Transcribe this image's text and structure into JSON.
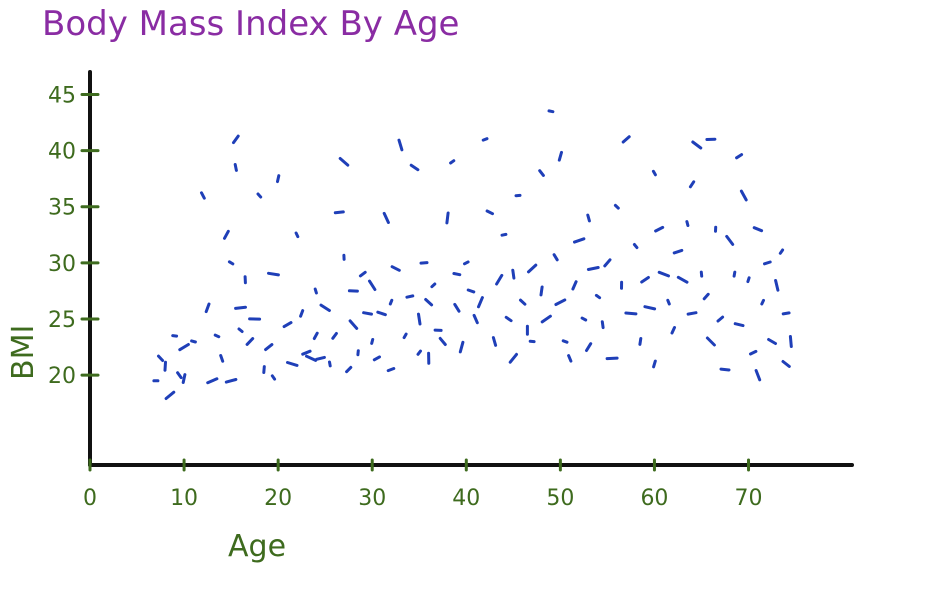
{
  "chart_data": {
    "type": "scatter",
    "title": "Body Mass Index By Age",
    "xlabel": "Age",
    "ylabel": "BMI",
    "xticks": [
      0,
      10,
      20,
      30,
      40,
      50,
      60,
      70
    ],
    "yticks": [
      20,
      25,
      30,
      35,
      40,
      45
    ],
    "xlim": [
      0,
      81
    ],
    "ylim": [
      12,
      47
    ],
    "grid": false,
    "legend": "none",
    "point_color": "#1f3fb8",
    "points": [
      [
        7,
        19.5
      ],
      [
        7.5,
        21.5
      ],
      [
        8,
        20.8
      ],
      [
        8.5,
        18.2
      ],
      [
        9,
        23.5
      ],
      [
        9.5,
        20
      ],
      [
        10,
        19.7
      ],
      [
        10,
        22.5
      ],
      [
        11,
        23
      ],
      [
        12,
        36
      ],
      [
        12.5,
        26
      ],
      [
        13,
        19.5
      ],
      [
        13.5,
        23.5
      ],
      [
        14,
        21.5
      ],
      [
        14.5,
        32.5
      ],
      [
        15,
        19.5
      ],
      [
        15,
        30
      ],
      [
        15.5,
        38.5
      ],
      [
        15.5,
        41
      ],
      [
        16,
        26
      ],
      [
        16,
        24
      ],
      [
        16.5,
        28.5
      ],
      [
        17,
        23
      ],
      [
        17.5,
        25
      ],
      [
        18,
        36
      ],
      [
        18.5,
        20.5
      ],
      [
        19,
        22.5
      ],
      [
        19.5,
        29
      ],
      [
        19.5,
        19.8
      ],
      [
        20,
        37.5
      ],
      [
        21,
        24.5
      ],
      [
        21.5,
        21
      ],
      [
        22,
        32.5
      ],
      [
        22.5,
        25.5
      ],
      [
        23,
        22
      ],
      [
        23.5,
        21.5
      ],
      [
        24,
        27.5
      ],
      [
        24,
        23.5
      ],
      [
        24.5,
        21.5
      ],
      [
        25,
        26
      ],
      [
        25.5,
        21
      ],
      [
        26,
        23.5
      ],
      [
        26.5,
        34.5
      ],
      [
        27,
        39
      ],
      [
        27,
        30.5
      ],
      [
        27.5,
        20.5
      ],
      [
        28,
        27.5
      ],
      [
        28,
        24.5
      ],
      [
        28.5,
        22
      ],
      [
        29,
        29
      ],
      [
        29.5,
        25.5
      ],
      [
        30,
        28
      ],
      [
        30,
        23
      ],
      [
        30.5,
        21.5
      ],
      [
        31,
        25.5
      ],
      [
        31.5,
        34
      ],
      [
        32,
        26.5
      ],
      [
        32,
        20.5
      ],
      [
        32.5,
        29.5
      ],
      [
        33,
        40.5
      ],
      [
        33.5,
        23.5
      ],
      [
        34,
        27
      ],
      [
        34.5,
        38.5
      ],
      [
        35,
        25
      ],
      [
        35,
        22
      ],
      [
        35.5,
        30
      ],
      [
        36,
        26.5
      ],
      [
        36,
        21.5
      ],
      [
        36.5,
        28
      ],
      [
        37,
        24
      ],
      [
        37.5,
        23
      ],
      [
        38,
        34
      ],
      [
        38.5,
        39
      ],
      [
        39,
        29
      ],
      [
        39,
        26
      ],
      [
        39.5,
        22.5
      ],
      [
        40,
        30
      ],
      [
        40.5,
        27.5
      ],
      [
        41,
        25
      ],
      [
        41.5,
        26.5
      ],
      [
        42,
        41
      ],
      [
        42.5,
        34.5
      ],
      [
        43,
        23
      ],
      [
        43.5,
        28.5
      ],
      [
        44,
        32.5
      ],
      [
        44.5,
        25
      ],
      [
        45,
        29
      ],
      [
        45,
        21.5
      ],
      [
        45.5,
        36
      ],
      [
        46,
        26.5
      ],
      [
        46.5,
        24
      ],
      [
        47,
        29.5
      ],
      [
        47,
        23
      ],
      [
        48,
        38
      ],
      [
        48,
        27.5
      ],
      [
        48.5,
        25
      ],
      [
        49,
        43.5
      ],
      [
        49.5,
        30.5
      ],
      [
        50,
        39.5
      ],
      [
        50,
        26.5
      ],
      [
        50.5,
        23
      ],
      [
        51,
        21.5
      ],
      [
        51.5,
        28
      ],
      [
        52,
        32
      ],
      [
        52.5,
        25
      ],
      [
        53,
        34
      ],
      [
        53,
        22.5
      ],
      [
        53.5,
        29.5
      ],
      [
        54,
        27
      ],
      [
        54.5,
        24.5
      ],
      [
        55,
        30
      ],
      [
        55.5,
        21.5
      ],
      [
        56,
        35
      ],
      [
        56.5,
        28
      ],
      [
        57,
        41
      ],
      [
        57.5,
        25.5
      ],
      [
        58,
        31.5
      ],
      [
        58.5,
        23
      ],
      [
        59,
        28.5
      ],
      [
        59.5,
        26
      ],
      [
        60,
        38
      ],
      [
        60,
        21
      ],
      [
        60.5,
        33
      ],
      [
        61,
        29
      ],
      [
        61.5,
        26.5
      ],
      [
        62,
        24
      ],
      [
        62.5,
        31
      ],
      [
        63,
        28.5
      ],
      [
        63.5,
        33.5
      ],
      [
        64,
        37
      ],
      [
        64,
        25.5
      ],
      [
        64.5,
        40.5
      ],
      [
        65,
        29
      ],
      [
        65.5,
        27
      ],
      [
        66,
        41
      ],
      [
        66,
        23
      ],
      [
        66.5,
        33
      ],
      [
        67,
        25
      ],
      [
        67.5,
        20.5
      ],
      [
        68,
        32
      ],
      [
        68.5,
        29
      ],
      [
        69,
        39.5
      ],
      [
        69,
        24.5
      ],
      [
        69.5,
        36
      ],
      [
        70,
        28.5
      ],
      [
        70.5,
        22
      ],
      [
        71,
        33
      ],
      [
        71,
        20
      ],
      [
        71.5,
        26.5
      ],
      [
        72,
        30
      ],
      [
        72.5,
        23
      ],
      [
        73,
        28
      ],
      [
        73.5,
        31
      ],
      [
        74,
        25.5
      ],
      [
        74,
        21
      ],
      [
        74.5,
        23
      ]
    ]
  }
}
